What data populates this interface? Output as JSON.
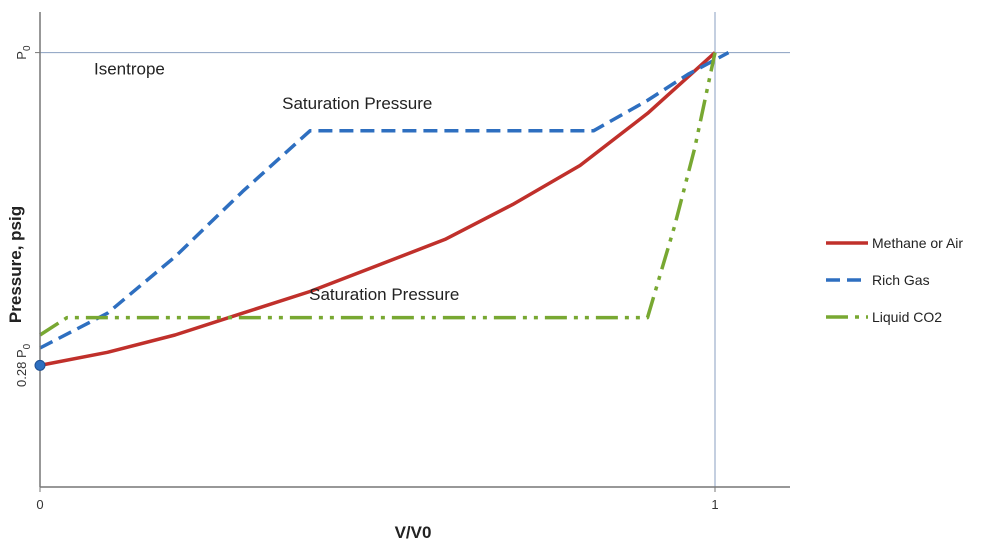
{
  "chart_data": {
    "type": "line",
    "title": "",
    "xlabel": "V/V0",
    "ylabel": "Pressure, psig",
    "xlim": [
      0,
      1.1
    ],
    "ylim": [
      0,
      1.1
    ],
    "x_ticks": [
      {
        "value": 0,
        "label": "0"
      },
      {
        "value": 1,
        "label": "1"
      }
    ],
    "y_ticks": [
      {
        "value": 0.28,
        "label_main": "0.28 P",
        "label_sub": "0"
      },
      {
        "value": 1.0,
        "label_main": "P",
        "label_sub": "0"
      }
    ],
    "reference_lines": {
      "x": 1,
      "y": 1.0
    },
    "marker": {
      "x": 0,
      "y": 0.28
    },
    "annotations": [
      {
        "text": "Isentrope",
        "x": 0.08,
        "y": 0.95
      },
      {
        "text": "Saturation Pressure",
        "x": 0.47,
        "y": 0.87
      },
      {
        "text": "Saturation Pressure",
        "x": 0.51,
        "y": 0.43
      }
    ],
    "series": [
      {
        "name": "Methane or Air",
        "color": "#c0302b",
        "dash": "solid",
        "x": [
          0,
          0.1,
          0.2,
          0.3,
          0.4,
          0.5,
          0.6,
          0.7,
          0.8,
          0.9,
          1.0
        ],
        "y": [
          0.28,
          0.31,
          0.35,
          0.4,
          0.45,
          0.51,
          0.57,
          0.65,
          0.74,
          0.86,
          1.0
        ]
      },
      {
        "name": "Rich Gas",
        "color": "#2e6fc0",
        "dash": "dashed",
        "x": [
          0,
          0.1,
          0.2,
          0.3,
          0.4,
          0.82,
          0.9,
          0.96,
          1.02
        ],
        "y": [
          0.32,
          0.4,
          0.53,
          0.68,
          0.82,
          0.82,
          0.89,
          0.95,
          1.0
        ]
      },
      {
        "name": "Liquid CO2",
        "color": "#78a832",
        "dash": "dashdot",
        "x": [
          0,
          0.04,
          0.9,
          0.94,
          0.97,
          1.0
        ],
        "y": [
          0.35,
          0.39,
          0.39,
          0.6,
          0.78,
          1.0
        ]
      }
    ],
    "legend": {
      "position": "right"
    }
  }
}
